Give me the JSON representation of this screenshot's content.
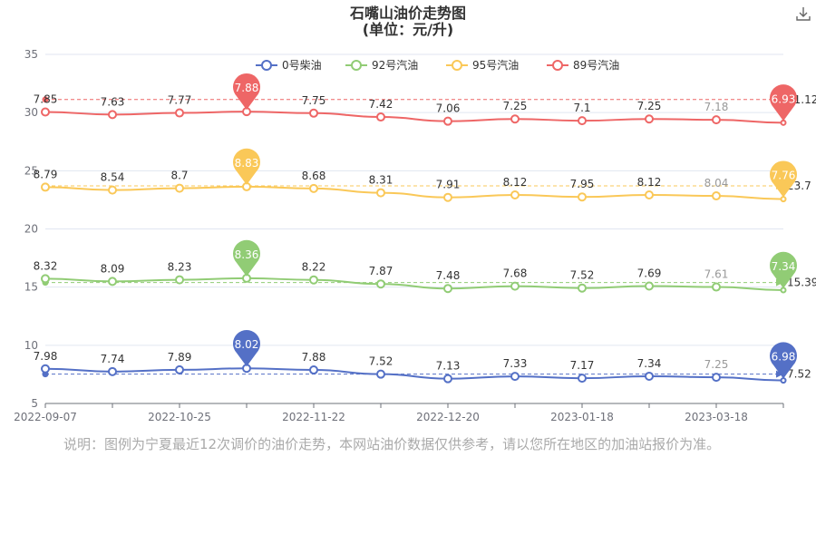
{
  "toolbox": {
    "download_icon": "download-icon"
  },
  "note": "说明：图例为宁夏最近12次调价的油价走势，本网站油价数据仅供参考，请以您所在地区的加油站报价为准。",
  "chart_data": {
    "type": "line",
    "title": "石嘴山油价走势图",
    "subtitle": "(单位：元/升)",
    "ylim": [
      5,
      35
    ],
    "yticks": [
      5,
      10,
      15,
      20,
      25,
      30,
      35
    ],
    "x_tick_labels": [
      "2022-09-07",
      "2022-10-25",
      "2022-11-22",
      "2022-12-20",
      "2023-01-18",
      "2023-03-18"
    ],
    "x_tick_index": [
      0,
      2,
      4,
      6,
      8,
      10
    ],
    "grid": true,
    "legend_position": "top",
    "series": [
      {
        "name": "0号柴油",
        "color": "#5470c6",
        "values": [
          7.98,
          7.74,
          7.89,
          8.02,
          7.88,
          7.52,
          7.13,
          7.33,
          7.17,
          7.34,
          7.25,
          6.98
        ],
        "max_marker": "8.02",
        "min_marker": "6.98",
        "average_line_label": "7.52",
        "average_value": 7.52
      },
      {
        "name": "92号汽油",
        "color": "#91cc75",
        "values": [
          8.32,
          8.09,
          8.23,
          8.36,
          8.22,
          7.87,
          7.48,
          7.68,
          7.52,
          7.69,
          7.61,
          7.34
        ],
        "max_marker": "8.36",
        "min_marker": "7.34",
        "average_line_label": "15.39",
        "average_value": 15.39
      },
      {
        "name": "95号汽油",
        "color": "#fac858",
        "values": [
          8.79,
          8.54,
          8.7,
          8.83,
          8.68,
          8.31,
          7.91,
          8.12,
          7.95,
          8.12,
          8.04,
          7.76
        ],
        "max_marker": "8.83",
        "min_marker": "7.76",
        "average_line_label": "23.7",
        "average_value": 23.7
      },
      {
        "name": "89号汽油",
        "color": "#ee6666",
        "values": [
          7.85,
          7.63,
          7.77,
          7.88,
          7.75,
          7.42,
          7.06,
          7.25,
          7.1,
          7.25,
          7.18,
          6.93
        ],
        "max_marker": "7.88",
        "min_marker": "6.93",
        "average_line_label": "31.12",
        "average_value": 31.12
      }
    ]
  }
}
